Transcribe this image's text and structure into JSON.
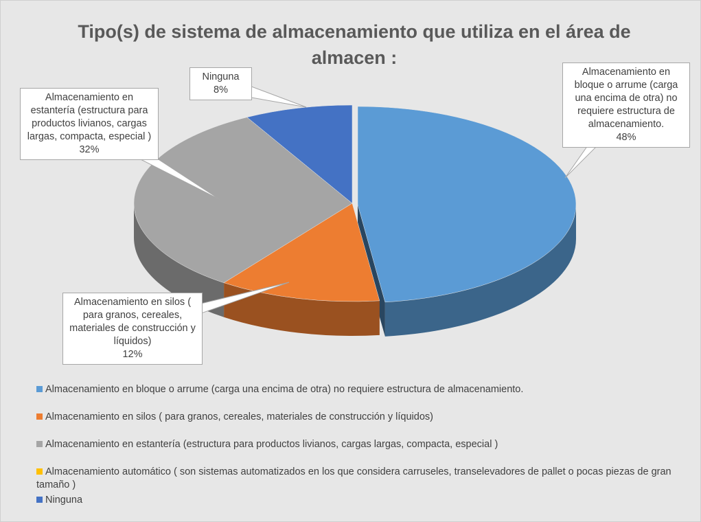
{
  "chart_data": {
    "type": "pie3d",
    "title": "Tipo(s) de sistema de almacenamiento que utiliza en el área de almacen :",
    "categories": [
      "Almacenamiento en bloque o arrume (carga una encima de otra) no requiere estructura de almacenamiento.",
      "Almacenamiento en silos ( para granos, cereales, materiales de construcción y líquidos)",
      "Almacenamiento en estantería (estructura para productos livianos, cargas largas, compacta, especial )",
      "Almacenamiento automático ( son sistemas automatizados en los que considera carruseles, transelevadores de pallet o pocas piezas de gran tamaño )",
      "Ninguna"
    ],
    "values": [
      48,
      12,
      32,
      0,
      8
    ],
    "value_labels": [
      "48%",
      "12%",
      "32%",
      null,
      "8%"
    ],
    "colors": [
      "#5b9bd5",
      "#ed7d31",
      "#a5a5a5",
      "#ffc000",
      "#4472c4"
    ],
    "legend": "bottom"
  }
}
